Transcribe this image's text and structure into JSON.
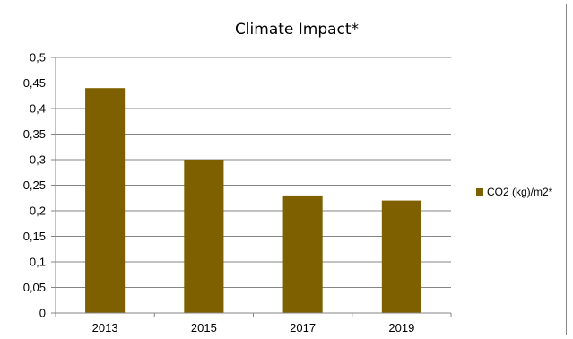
{
  "chart_data": {
    "type": "bar",
    "title": "Climate Impact*",
    "categories": [
      "2013",
      "2015",
      "2017",
      "2019"
    ],
    "series": [
      {
        "name": "CO2 (kg)/m2*",
        "values": [
          0.44,
          0.3,
          0.23,
          0.22
        ],
        "color": "#7f6000"
      }
    ],
    "ylim": [
      0,
      0.5
    ],
    "yticks": [
      "0",
      "0,05",
      "0,1",
      "0,15",
      "0,2",
      "0,25",
      "0,3",
      "0,35",
      "0,4",
      "0,45",
      "0,5"
    ],
    "ytick_values": [
      0,
      0.05,
      0.1,
      0.15,
      0.2,
      0.25,
      0.3,
      0.35,
      0.4,
      0.45,
      0.5
    ],
    "grid": true,
    "legend_position": "right",
    "xlabel": "",
    "ylabel": ""
  }
}
